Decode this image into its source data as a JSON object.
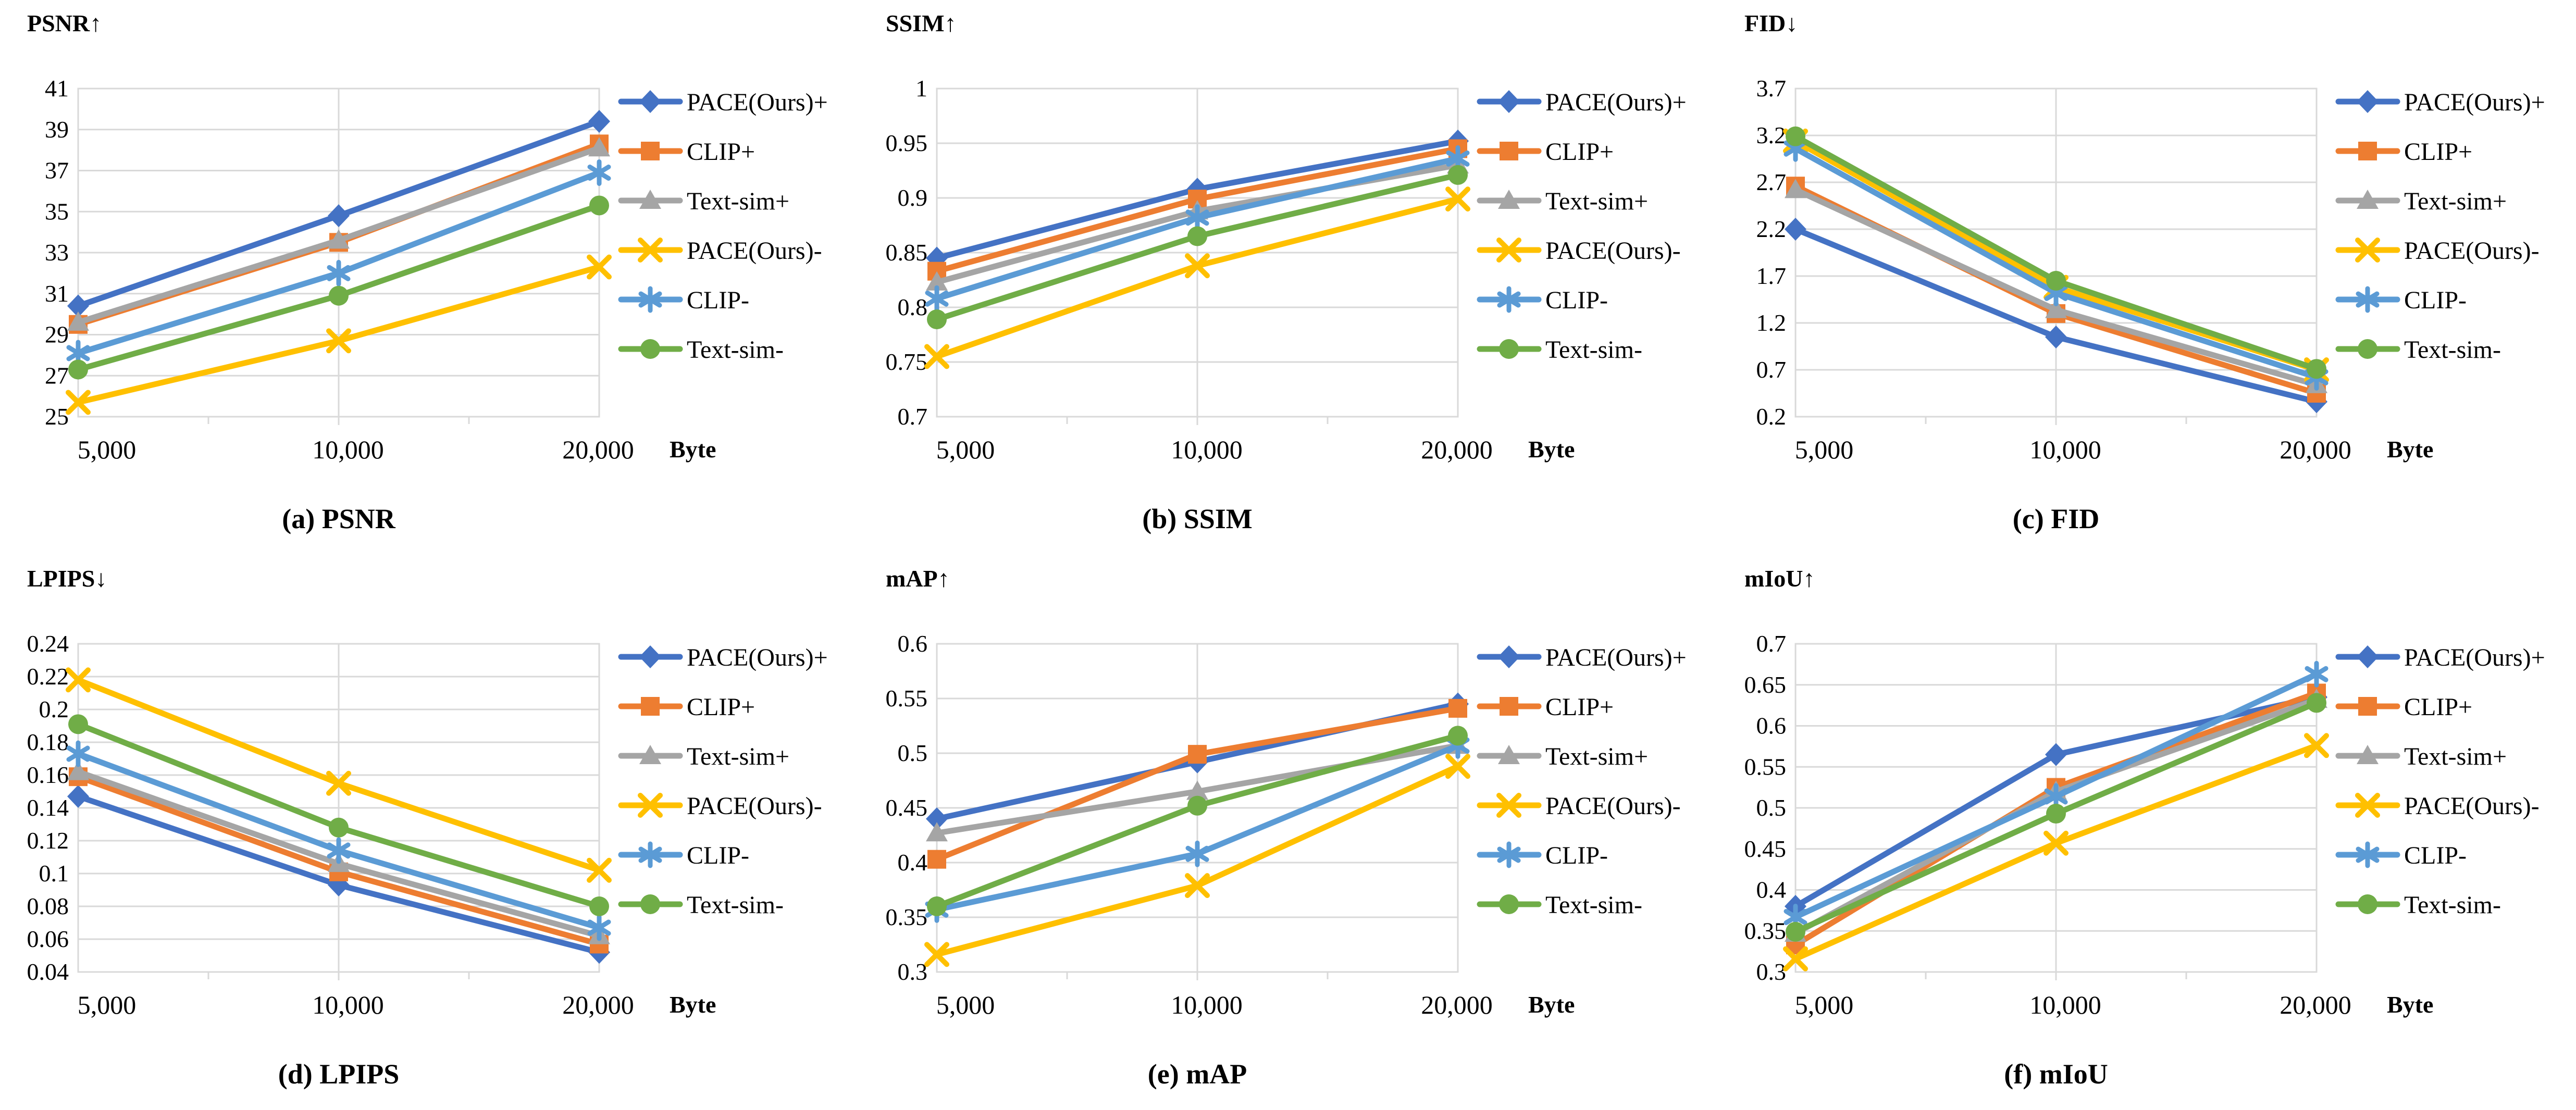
{
  "figure": {
    "background": "#ffffff",
    "text_color": "#000000",
    "grid_color": "#d9d9d9",
    "x_axis_label": "Byte",
    "categories": [
      "5,000",
      "10,000",
      "20,000"
    ],
    "legend": [
      "PACE(Ours)+",
      "CLIP+",
      "Text-sim+",
      "PACE(Ours)-",
      "CLIP-",
      "Text-sim-"
    ]
  },
  "series_styles": [
    {
      "name": "PACE(Ours)+",
      "color": "#4472C4",
      "marker": "diamond"
    },
    {
      "name": "CLIP+",
      "color": "#ED7D31",
      "marker": "square"
    },
    {
      "name": "Text-sim+",
      "color": "#A5A5A5",
      "marker": "triangle"
    },
    {
      "name": "PACE(Ours)-",
      "color": "#FFC000",
      "marker": "x"
    },
    {
      "name": "CLIP-",
      "color": "#5B9BD5",
      "marker": "asterisk"
    },
    {
      "name": "Text-sim-",
      "color": "#70AD47",
      "marker": "circle"
    }
  ],
  "chart_data": [
    {
      "type": "line",
      "panel": "a",
      "title": "PSNR↑",
      "caption": "(a) PSNR",
      "xlabel": "Byte",
      "categories": [
        "5,000",
        "10,000",
        "20,000"
      ],
      "ylim": [
        25,
        41
      ],
      "ytick_step": 2,
      "grid": true,
      "legend_position": "right",
      "series": [
        {
          "name": "PACE(Ours)+",
          "values": [
            30.4,
            34.8,
            39.4
          ]
        },
        {
          "name": "CLIP+",
          "values": [
            29.5,
            33.5,
            38.3
          ]
        },
        {
          "name": "Text-sim+",
          "values": [
            29.6,
            33.6,
            38.1
          ]
        },
        {
          "name": "PACE(Ours)-",
          "values": [
            25.7,
            28.7,
            32.3
          ]
        },
        {
          "name": "CLIP-",
          "values": [
            28.1,
            32.0,
            36.9
          ]
        },
        {
          "name": "Text-sim-",
          "values": [
            27.3,
            30.9,
            35.3
          ]
        }
      ]
    },
    {
      "type": "line",
      "panel": "b",
      "title": "SSIM↑",
      "caption": "(b) SSIM",
      "xlabel": "Byte",
      "categories": [
        "5,000",
        "10,000",
        "20,000"
      ],
      "ylim": [
        0.7,
        1.0
      ],
      "ytick_step": 0.05,
      "grid": true,
      "legend_position": "right",
      "series": [
        {
          "name": "PACE(Ours)+",
          "values": [
            0.845,
            0.908,
            0.952
          ]
        },
        {
          "name": "CLIP+",
          "values": [
            0.833,
            0.899,
            0.945
          ]
        },
        {
          "name": "Text-sim+",
          "values": [
            0.823,
            0.888,
            0.93
          ]
        },
        {
          "name": "PACE(Ours)-",
          "values": [
            0.755,
            0.838,
            0.899
          ]
        },
        {
          "name": "CLIP-",
          "values": [
            0.808,
            0.882,
            0.936
          ]
        },
        {
          "name": "Text-sim-",
          "values": [
            0.789,
            0.865,
            0.921
          ]
        }
      ]
    },
    {
      "type": "line",
      "panel": "c",
      "title": "FID↓",
      "caption": "(c) FID",
      "xlabel": "Byte",
      "categories": [
        "5,000",
        "10,000",
        "20,000"
      ],
      "ylim": [
        0.2,
        3.7
      ],
      "ytick_step": 0.5,
      "grid": true,
      "legend_position": "right",
      "series": [
        {
          "name": "PACE(Ours)+",
          "values": [
            2.2,
            1.05,
            0.36
          ]
        },
        {
          "name": "CLIP+",
          "values": [
            2.66,
            1.3,
            0.45
          ]
        },
        {
          "name": "Text-sim+",
          "values": [
            2.62,
            1.34,
            0.54
          ]
        },
        {
          "name": "PACE(Ours)-",
          "values": [
            3.14,
            1.58,
            0.7
          ]
        },
        {
          "name": "CLIP-",
          "values": [
            3.06,
            1.52,
            0.62
          ]
        },
        {
          "name": "Text-sim-",
          "values": [
            3.19,
            1.65,
            0.71
          ]
        }
      ]
    },
    {
      "type": "line",
      "panel": "d",
      "title": "LPIPS↓",
      "caption": "(d) LPIPS",
      "xlabel": "Byte",
      "categories": [
        "5,000",
        "10,000",
        "20,000"
      ],
      "ylim": [
        0.04,
        0.24
      ],
      "ytick_step": 0.02,
      "grid": true,
      "legend_position": "right",
      "series": [
        {
          "name": "PACE(Ours)+",
          "values": [
            0.147,
            0.093,
            0.052
          ]
        },
        {
          "name": "CLIP+",
          "values": [
            0.159,
            0.101,
            0.057
          ]
        },
        {
          "name": "Text-sim+",
          "values": [
            0.162,
            0.106,
            0.062
          ]
        },
        {
          "name": "PACE(Ours)-",
          "values": [
            0.218,
            0.155,
            0.102
          ]
        },
        {
          "name": "CLIP-",
          "values": [
            0.173,
            0.114,
            0.067
          ]
        },
        {
          "name": "Text-sim-",
          "values": [
            0.191,
            0.128,
            0.08
          ]
        }
      ]
    },
    {
      "type": "line",
      "panel": "e",
      "title": "mAP↑",
      "caption": "(e) mAP",
      "xlabel": "Byte",
      "categories": [
        "5,000",
        "10,000",
        "20,000"
      ],
      "ylim": [
        0.3,
        0.6
      ],
      "ytick_step": 0.05,
      "grid": true,
      "legend_position": "right",
      "series": [
        {
          "name": "PACE(Ours)+",
          "values": [
            0.44,
            0.492,
            0.545
          ]
        },
        {
          "name": "CLIP+",
          "values": [
            0.403,
            0.499,
            0.541
          ]
        },
        {
          "name": "Text-sim+",
          "values": [
            0.427,
            0.465,
            0.507
          ]
        },
        {
          "name": "PACE(Ours)-",
          "values": [
            0.316,
            0.379,
            0.488
          ]
        },
        {
          "name": "CLIP-",
          "values": [
            0.357,
            0.408,
            0.507
          ]
        },
        {
          "name": "Text-sim-",
          "values": [
            0.36,
            0.452,
            0.516
          ]
        }
      ]
    },
    {
      "type": "line",
      "panel": "f",
      "title": "mIoU↑",
      "caption": "(f) mIoU",
      "xlabel": "Byte",
      "categories": [
        "5,000",
        "10,000",
        "20,000"
      ],
      "ylim": [
        0.3,
        0.7
      ],
      "ytick_step": 0.05,
      "grid": true,
      "legend_position": "right",
      "series": [
        {
          "name": "PACE(Ours)+",
          "values": [
            0.38,
            0.565,
            0.635
          ]
        },
        {
          "name": "CLIP+",
          "values": [
            0.333,
            0.525,
            0.64
          ]
        },
        {
          "name": "Text-sim+",
          "values": [
            0.347,
            0.52,
            0.632
          ]
        },
        {
          "name": "PACE(Ours)-",
          "values": [
            0.316,
            0.457,
            0.576
          ]
        },
        {
          "name": "CLIP-",
          "values": [
            0.367,
            0.514,
            0.663
          ]
        },
        {
          "name": "Text-sim-",
          "values": [
            0.349,
            0.493,
            0.628
          ]
        }
      ]
    }
  ]
}
